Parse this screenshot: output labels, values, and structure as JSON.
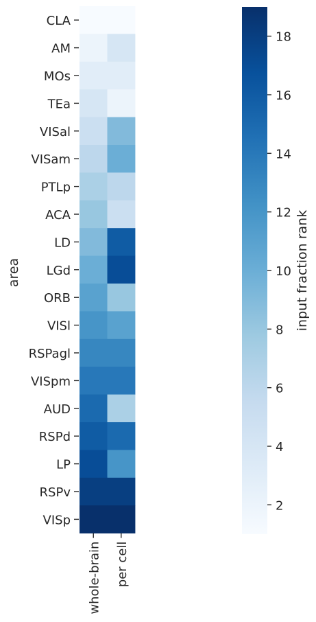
{
  "chart_data": {
    "type": "heatmap",
    "ylabel": "area",
    "xlabel": "",
    "columns": [
      "whole-brain",
      "per cell"
    ],
    "rows": [
      "CLA",
      "AM",
      "MOs",
      "TEa",
      "VISal",
      "VISam",
      "PTLp",
      "ACA",
      "LD",
      "LGd",
      "ORB",
      "VISl",
      "RSPagl",
      "VISpm",
      "AUD",
      "RSPd",
      "LP",
      "RSPv",
      "VISp"
    ],
    "values": [
      [
        1,
        1
      ],
      [
        2,
        4
      ],
      [
        3,
        3
      ],
      [
        4,
        2
      ],
      [
        5,
        9
      ],
      [
        6,
        10
      ],
      [
        7,
        6
      ],
      [
        8,
        5
      ],
      [
        9,
        16
      ],
      [
        10,
        17
      ],
      [
        11,
        8
      ],
      [
        12,
        11
      ],
      [
        13,
        13
      ],
      [
        14,
        14
      ],
      [
        15,
        7
      ],
      [
        16,
        15
      ],
      [
        17,
        12
      ],
      [
        18,
        18
      ],
      [
        19,
        19
      ]
    ],
    "colorbar": {
      "label": "input fraction rank",
      "min": 1,
      "max": 19,
      "ticks": [
        2,
        4,
        6,
        8,
        10,
        12,
        14,
        16,
        18
      ],
      "colormap": "Blues"
    }
  }
}
